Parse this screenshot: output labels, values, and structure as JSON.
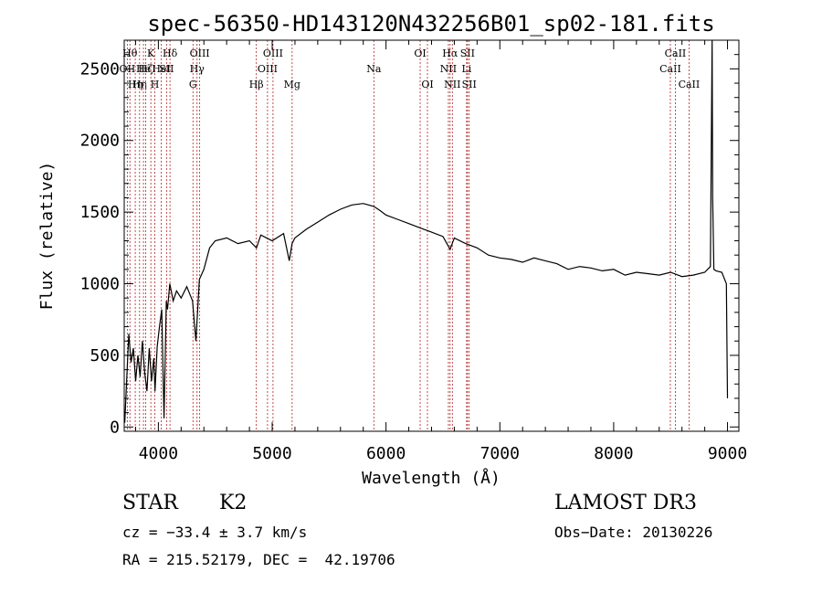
{
  "chart_data": {
    "type": "line",
    "title": "spec-56350-HD143120N432256B01_sp02-181.fits",
    "xlabel": "Wavelength (Å)",
    "ylabel": "Flux (relative)",
    "xlim": [
      3700,
      9100
    ],
    "ylim": [
      -30,
      2700
    ],
    "xticks": [
      4000,
      5000,
      6000,
      7000,
      8000,
      9000
    ],
    "yticks": [
      0,
      500,
      1000,
      1500,
      2000,
      2500
    ],
    "grid": false,
    "colors": {
      "spectrum": "#000000",
      "line_marker": "#b22222"
    },
    "spectrum": {
      "name": "flux",
      "x": [
        3705,
        3720,
        3740,
        3760,
        3780,
        3800,
        3820,
        3840,
        3860,
        3880,
        3900,
        3920,
        3940,
        3960,
        3970,
        3990,
        4010,
        4030,
        4050,
        4070,
        4080,
        4100,
        4130,
        4160,
        4200,
        4250,
        4300,
        4330,
        4360,
        4400,
        4450,
        4500,
        4600,
        4700,
        4800,
        4862,
        4900,
        5000,
        5100,
        5150,
        5175,
        5200,
        5300,
        5400,
        5500,
        5600,
        5700,
        5800,
        5893,
        5950,
        6000,
        6100,
        6200,
        6300,
        6400,
        6500,
        6563,
        6600,
        6700,
        6800,
        6900,
        7000,
        7100,
        7200,
        7300,
        7400,
        7500,
        7600,
        7700,
        7800,
        7900,
        8000,
        8100,
        8200,
        8300,
        8400,
        8500,
        8600,
        8700,
        8800,
        8850,
        8865,
        8870,
        8880,
        8900,
        8950,
        8990,
        9000
      ],
      "y": [
        30,
        300,
        650,
        450,
        550,
        320,
        500,
        350,
        600,
        380,
        250,
        550,
        320,
        480,
        250,
        560,
        700,
        820,
        60,
        880,
        820,
        1000,
        880,
        950,
        900,
        980,
        880,
        600,
        1030,
        1100,
        1250,
        1300,
        1320,
        1280,
        1300,
        1250,
        1340,
        1300,
        1350,
        1160,
        1280,
        1320,
        1380,
        1430,
        1480,
        1520,
        1550,
        1560,
        1540,
        1510,
        1480,
        1450,
        1420,
        1390,
        1360,
        1330,
        1240,
        1320,
        1280,
        1250,
        1200,
        1180,
        1170,
        1150,
        1180,
        1160,
        1140,
        1100,
        1120,
        1110,
        1090,
        1100,
        1060,
        1080,
        1070,
        1060,
        1080,
        1050,
        1060,
        1080,
        1120,
        2700,
        1600,
        1100,
        1090,
        1080,
        1000,
        200
      ]
    },
    "line_markers": [
      {
        "wave": 3727,
        "label": "OII",
        "row": 1
      },
      {
        "wave": 3750,
        "label": "Hθ",
        "row": 0
      },
      {
        "wave": 3797,
        "label": "Hη",
        "row": 2
      },
      {
        "wave": 3835,
        "label": "Hη",
        "row": 2
      },
      {
        "wave": 3869,
        "label": "He",
        "row": 1
      },
      {
        "wave": 3889,
        "label": "Hζ",
        "row": 1
      },
      {
        "wave": 3934,
        "label": "K",
        "row": 0
      },
      {
        "wave": 3969,
        "label": "H",
        "row": 2
      },
      {
        "wave": 4026,
        "label": "HeI",
        "row": 1
      },
      {
        "wave": 4072,
        "label": "SII",
        "row": 1
      },
      {
        "wave": 4102,
        "label": "Hδ",
        "row": 0
      },
      {
        "wave": 4304,
        "label": "G",
        "row": 2
      },
      {
        "wave": 4340,
        "label": "Hγ",
        "row": 1
      },
      {
        "wave": 4363,
        "label": "OIII",
        "row": 0
      },
      {
        "wave": 4861,
        "label": "Hβ",
        "row": 2
      },
      {
        "wave": 4959,
        "label": "OIII",
        "row": 1
      },
      {
        "wave": 5007,
        "label": "OIII",
        "row": 0
      },
      {
        "wave": 5175,
        "label": "Mg",
        "row": 2
      },
      {
        "wave": 5893,
        "label": "Na",
        "row": 1
      },
      {
        "wave": 6300,
        "label": "OI",
        "row": 0
      },
      {
        "wave": 6364,
        "label": "OI",
        "row": 2
      },
      {
        "wave": 6548,
        "label": "NII",
        "row": 1
      },
      {
        "wave": 6563,
        "label": "Hα",
        "row": 0
      },
      {
        "wave": 6583,
        "label": "NII",
        "row": 2
      },
      {
        "wave": 6708,
        "label": "Li",
        "row": 1
      },
      {
        "wave": 6716,
        "label": "SII",
        "row": 0
      },
      {
        "wave": 6731,
        "label": "SII",
        "row": 2
      },
      {
        "wave": 8498,
        "label": "CaII",
        "row": 1
      },
      {
        "wave": 8542,
        "label": "CaII",
        "row": 0
      },
      {
        "wave": 8662,
        "label": "CaII",
        "row": 2
      }
    ]
  },
  "info": {
    "object_class": "STAR",
    "subclass": "K2",
    "survey": "LAMOST DR3",
    "redshift": "cz = −33.4 ± 3.7 km/s",
    "obs_date": "Obs−Date: 20130226",
    "coords": "RA = 215.52179, DEC =  42.19706"
  }
}
